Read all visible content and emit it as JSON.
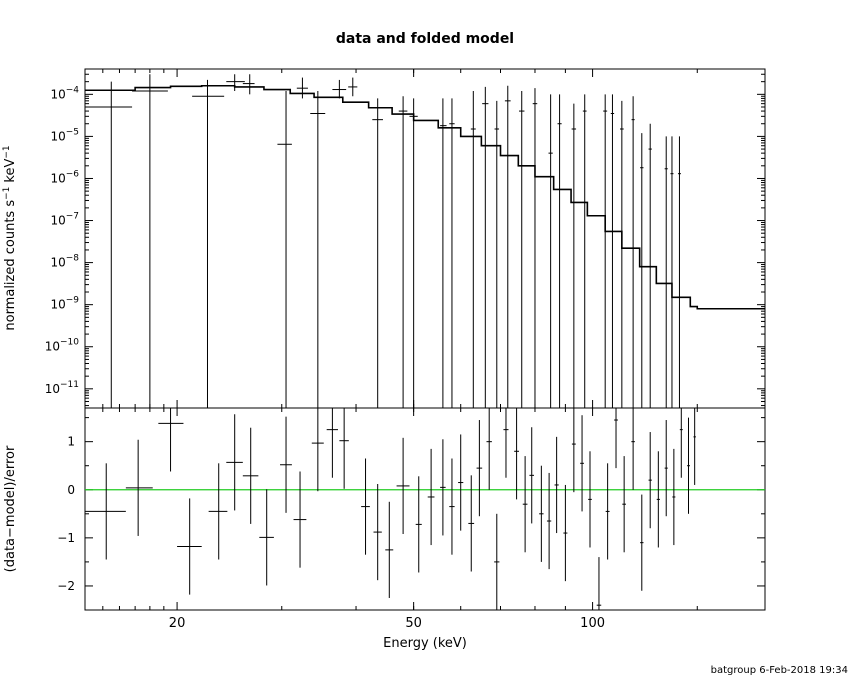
{
  "chart_data": [
    {
      "type": "step",
      "title": "data and folded model",
      "ylabel": "normalized counts s",
      "ylabel_unit": "keV",
      "ylabel_exp": "−1",
      "xscale": "log",
      "yscale": "log",
      "xlim": [
        14,
        195
      ],
      "ylim": [
        3.5e-12,
        0.0004
      ],
      "yticks": [
        {
          "value": 0.0001,
          "mant": "10",
          "exp": "−4"
        },
        {
          "value": 1e-05,
          "mant": "10",
          "exp": "−5"
        },
        {
          "value": 1e-06,
          "mant": "10",
          "exp": "−6"
        },
        {
          "value": 1e-07,
          "mant": "10",
          "exp": "−7"
        },
        {
          "value": 1e-08,
          "mant": "10",
          "exp": "−8"
        },
        {
          "value": 1e-09,
          "mant": "10",
          "exp": "−9"
        },
        {
          "value": 1e-10,
          "mant": "10",
          "exp": "−10"
        },
        {
          "value": 1e-11,
          "mant": "10",
          "exp": "−11"
        }
      ],
      "model": [
        [
          14,
          0.000125
        ],
        [
          17,
          0.000145
        ],
        [
          19.5,
          0.000155
        ],
        [
          22,
          0.00016
        ],
        [
          25,
          0.00015
        ],
        [
          28,
          0.00013
        ],
        [
          31,
          0.000105
        ],
        [
          34,
          8.5e-05
        ],
        [
          38,
          6.5e-05
        ],
        [
          42,
          4.8e-05
        ],
        [
          46,
          3.4e-05
        ],
        [
          50,
          2.4e-05
        ],
        [
          55,
          1.6e-05
        ],
        [
          60,
          1e-05
        ],
        [
          65,
          6e-06
        ],
        [
          70,
          3.5e-06
        ],
        [
          75,
          2e-06
        ],
        [
          80,
          1.1e-06
        ],
        [
          86,
          5.5e-07
        ],
        [
          92,
          2.7e-07
        ],
        [
          98,
          1.3e-07
        ],
        [
          105,
          5.5e-08
        ],
        [
          112,
          2.2e-08
        ],
        [
          120,
          8e-09
        ],
        [
          128,
          3.2e-09
        ],
        [
          136,
          1.5e-09
        ],
        [
          146,
          9e-10
        ],
        [
          150,
          8e-10
        ]
      ],
      "data_points": [
        {
          "x": 15.5,
          "xl": 14,
          "xh": 16.8,
          "y": 5e-05,
          "ylo": 3e-12,
          "yhi": 0.0002
        },
        {
          "x": 18,
          "xl": 16.8,
          "xh": 19.3,
          "y": 0.00012,
          "ylo": 3e-12,
          "yhi": 0.0003
        },
        {
          "x": 22.5,
          "xl": 21.2,
          "xh": 24.0,
          "y": 9e-05,
          "ylo": 3e-12,
          "yhi": 0.00022
        },
        {
          "x": 25.0,
          "xl": 24.2,
          "xh": 26.0,
          "y": 0.0002,
          "ylo": 0.00012,
          "yhi": 0.0003
        },
        {
          "x": 26.5,
          "xl": 25.8,
          "xh": 27.0,
          "y": 0.00018,
          "ylo": 0.0001,
          "yhi": 0.0003
        },
        {
          "x": 30.5,
          "xl": 29.5,
          "xh": 31.2,
          "y": 6.5e-06,
          "ylo": 3e-12,
          "yhi": 0.00012
        },
        {
          "x": 32.5,
          "xl": 31.8,
          "xh": 33.2,
          "y": 0.00014,
          "ylo": 8e-05,
          "yhi": 0.00025
        },
        {
          "x": 34.5,
          "xl": 33.5,
          "xh": 35.5,
          "y": 3.5e-05,
          "ylo": 3e-12,
          "yhi": 0.00012
        },
        {
          "x": 37.5,
          "xl": 36.5,
          "xh": 38.5,
          "y": 0.00013,
          "ylo": 8e-05,
          "yhi": 0.00022
        },
        {
          "x": 39.5,
          "xl": 38.8,
          "xh": 40.2,
          "y": 0.00015,
          "ylo": 9e-05,
          "yhi": 0.00025
        },
        {
          "x": 43.5,
          "xl": 42.6,
          "xh": 44.4,
          "y": 2.5e-05,
          "ylo": 3e-12,
          "yhi": 8e-05
        },
        {
          "x": 48,
          "xl": 47.2,
          "xh": 48.8,
          "y": 4e-05,
          "ylo": 3e-12,
          "yhi": 9e-05
        },
        {
          "x": 50,
          "xl": 49.2,
          "xh": 50.8,
          "y": 3e-05,
          "ylo": 3e-12,
          "yhi": 8e-05
        },
        {
          "x": 56,
          "xl": 55.4,
          "xh": 56.8,
          "y": 1.8e-05,
          "ylo": 3e-12,
          "yhi": 8e-05
        },
        {
          "x": 58,
          "xl": 57.4,
          "xh": 58.6,
          "y": 2e-05,
          "ylo": 3e-12,
          "yhi": 8e-05
        },
        {
          "x": 63,
          "xl": 62.4,
          "xh": 63.6,
          "y": 1.5e-05,
          "ylo": 3e-12,
          "yhi": 0.00012
        },
        {
          "x": 66,
          "xl": 65.2,
          "xh": 66.8,
          "y": 6e-05,
          "ylo": 3e-12,
          "yhi": 0.00015
        },
        {
          "x": 69,
          "xl": 68.4,
          "xh": 69.6,
          "y": 1.5e-05,
          "ylo": 3e-12,
          "yhi": 7e-05
        },
        {
          "x": 72,
          "xl": 71.2,
          "xh": 72.8,
          "y": 7e-05,
          "ylo": 3e-12,
          "yhi": 0.00016
        },
        {
          "x": 76,
          "xl": 75.2,
          "xh": 76.8,
          "y": 4e-05,
          "ylo": 3e-12,
          "yhi": 0.00012
        },
        {
          "x": 80,
          "xl": 79.3,
          "xh": 80.7,
          "y": 6e-05,
          "ylo": 3e-12,
          "yhi": 0.00014
        },
        {
          "x": 85,
          "xl": 84.3,
          "xh": 85.7,
          "y": 4e-06,
          "ylo": 3e-12,
          "yhi": 0.0001
        },
        {
          "x": 88,
          "xl": 87.3,
          "xh": 88.7,
          "y": 2e-05,
          "ylo": 3e-12,
          "yhi": 0.0001
        },
        {
          "x": 93,
          "xl": 92.2,
          "xh": 93.8,
          "y": 1.5e-05,
          "ylo": 3e-12,
          "yhi": 6e-05
        },
        {
          "x": 97,
          "xl": 96.3,
          "xh": 97.7,
          "y": 4e-05,
          "ylo": 3e-12,
          "yhi": 0.0001
        },
        {
          "x": 105,
          "xl": 104.2,
          "xh": 105.8,
          "y": 4e-05,
          "ylo": 3e-12,
          "yhi": 0.0001
        },
        {
          "x": 108,
          "xl": 107.3,
          "xh": 108.7,
          "y": 3.5e-05,
          "ylo": 3e-12,
          "yhi": 0.0001
        },
        {
          "x": 112,
          "xl": 111.2,
          "xh": 112.8,
          "y": 1.5e-05,
          "ylo": 3e-12,
          "yhi": 7e-05
        },
        {
          "x": 117,
          "xl": 116.3,
          "xh": 117.7,
          "y": 2.5e-05,
          "ylo": 3e-12,
          "yhi": 9e-05
        },
        {
          "x": 121,
          "xl": 120.2,
          "xh": 121.8,
          "y": 1.8e-06,
          "ylo": 3e-12,
          "yhi": 1.2e-05
        },
        {
          "x": 125,
          "xl": 124.2,
          "xh": 125.8,
          "y": 5e-06,
          "ylo": 3e-12,
          "yhi": 2e-05
        },
        {
          "x": 133,
          "xl": 132.2,
          "xh": 133.8,
          "y": 1.7e-06,
          "ylo": 3e-12,
          "yhi": 1e-05
        },
        {
          "x": 136,
          "xl": 135.2,
          "xh": 136.8,
          "y": 1.3e-06,
          "ylo": 3e-12,
          "yhi": 1e-05
        },
        {
          "x": 140,
          "xl": 139.2,
          "xh": 140.8,
          "y": 1.3e-06,
          "ylo": 3e-12,
          "yhi": 1e-05
        }
      ]
    },
    {
      "type": "scatter",
      "xlabel": "Energy (keV)",
      "ylabel": "(data−model)/error",
      "xscale": "log",
      "xlim": [
        14,
        195
      ],
      "ylim": [
        -2.5,
        1.7
      ],
      "yticks": [
        {
          "value": 1,
          "label": "1"
        },
        {
          "value": 0,
          "label": "0"
        },
        {
          "value": -1,
          "label": "−1"
        },
        {
          "value": -2,
          "label": "−2"
        }
      ],
      "xticks": [
        {
          "value": 20,
          "label": "20"
        },
        {
          "value": 50,
          "label": "50"
        },
        {
          "value": 100,
          "label": "100"
        }
      ],
      "reference_line": {
        "y": 0,
        "color": "#22cc22"
      },
      "data_points": [
        {
          "x": 15.2,
          "xl": 14,
          "xh": 16.4,
          "y": -0.45,
          "ylo": -1.45,
          "yhi": 0.55
        },
        {
          "x": 17.2,
          "xl": 16.4,
          "xh": 18.2,
          "y": 0.04,
          "ylo": -0.96,
          "yhi": 1.04
        },
        {
          "x": 19.5,
          "xl": 18.6,
          "xh": 20.5,
          "y": 1.38,
          "ylo": 0.38,
          "yhi": 2.38
        },
        {
          "x": 21.0,
          "xl": 20.0,
          "xh": 22.0,
          "y": -1.18,
          "ylo": -2.18,
          "yhi": -0.18
        },
        {
          "x": 23.5,
          "xl": 22.6,
          "xh": 24.3,
          "y": -0.45,
          "ylo": -1.45,
          "yhi": 0.55
        },
        {
          "x": 25.0,
          "xl": 24.2,
          "xh": 25.8,
          "y": 0.57,
          "ylo": -0.43,
          "yhi": 1.57
        },
        {
          "x": 26.6,
          "xl": 25.8,
          "xh": 27.4,
          "y": 0.29,
          "ylo": -0.71,
          "yhi": 1.29
        },
        {
          "x": 28.3,
          "xl": 27.5,
          "xh": 29.1,
          "y": -0.99,
          "ylo": -1.99,
          "yhi": 0.01
        },
        {
          "x": 30.5,
          "xl": 29.8,
          "xh": 31.2,
          "y": 0.52,
          "ylo": -0.48,
          "yhi": 1.52
        },
        {
          "x": 32.2,
          "xl": 31.4,
          "xh": 33.0,
          "y": -0.62,
          "ylo": -1.62,
          "yhi": 0.38
        },
        {
          "x": 34.5,
          "xl": 33.7,
          "xh": 35.3,
          "y": 0.97,
          "ylo": -0.03,
          "yhi": 1.97
        },
        {
          "x": 36.5,
          "xl": 35.7,
          "xh": 37.3,
          "y": 1.25,
          "ylo": 0.25,
          "yhi": 2.25
        },
        {
          "x": 38.2,
          "xl": 37.5,
          "xh": 38.9,
          "y": 1.02,
          "ylo": 0.02,
          "yhi": 2.02
        },
        {
          "x": 41.5,
          "xl": 40.8,
          "xh": 42.2,
          "y": -0.35,
          "ylo": -1.35,
          "yhi": 0.65
        },
        {
          "x": 43.5,
          "xl": 42.8,
          "xh": 44.2,
          "y": -0.88,
          "ylo": -1.88,
          "yhi": 0.12
        },
        {
          "x": 45.5,
          "xl": 44.8,
          "xh": 46.2,
          "y": -1.25,
          "ylo": -2.25,
          "yhi": -0.25
        },
        {
          "x": 48.0,
          "xl": 46.8,
          "xh": 49.2,
          "y": 0.08,
          "ylo": -0.92,
          "yhi": 1.08
        },
        {
          "x": 51.0,
          "xl": 50.4,
          "xh": 51.6,
          "y": -0.72,
          "ylo": -1.72,
          "yhi": 0.28
        },
        {
          "x": 53.5,
          "xl": 52.8,
          "xh": 54.2,
          "y": -0.15,
          "ylo": -1.15,
          "yhi": 0.85
        },
        {
          "x": 56.0,
          "xl": 55.4,
          "xh": 56.6,
          "y": 0.05,
          "ylo": -0.95,
          "yhi": 1.05
        },
        {
          "x": 58.0,
          "xl": 57.4,
          "xh": 58.6,
          "y": -0.35,
          "ylo": -1.35,
          "yhi": 0.65
        },
        {
          "x": 60.0,
          "xl": 59.4,
          "xh": 60.6,
          "y": 0.15,
          "ylo": -0.85,
          "yhi": 1.15
        },
        {
          "x": 62.5,
          "xl": 61.8,
          "xh": 63.2,
          "y": -0.7,
          "ylo": -1.7,
          "yhi": 0.3
        },
        {
          "x": 64.5,
          "xl": 63.8,
          "xh": 65.2,
          "y": 0.45,
          "ylo": -0.55,
          "yhi": 1.45
        },
        {
          "x": 67.0,
          "xl": 66.3,
          "xh": 67.7,
          "y": 1.0,
          "ylo": 0.0,
          "yhi": 2.0
        },
        {
          "x": 69.0,
          "xl": 68.3,
          "xh": 69.7,
          "y": -1.5,
          "ylo": -2.5,
          "yhi": -0.5
        },
        {
          "x": 71.5,
          "xl": 70.8,
          "xh": 72.2,
          "y": 1.25,
          "ylo": 0.25,
          "yhi": 2.25
        },
        {
          "x": 74.5,
          "xl": 73.8,
          "xh": 75.2,
          "y": 0.8,
          "ylo": -0.2,
          "yhi": 1.8
        },
        {
          "x": 77.0,
          "xl": 76.3,
          "xh": 77.7,
          "y": -0.3,
          "ylo": -1.3,
          "yhi": 0.7
        },
        {
          "x": 79.0,
          "xl": 78.3,
          "xh": 79.7,
          "y": 0.3,
          "ylo": -0.7,
          "yhi": 1.3
        },
        {
          "x": 82.0,
          "xl": 81.3,
          "xh": 82.7,
          "y": -0.5,
          "ylo": -1.5,
          "yhi": 0.5
        },
        {
          "x": 84.5,
          "xl": 83.8,
          "xh": 85.2,
          "y": -0.65,
          "ylo": -1.65,
          "yhi": 0.35
        },
        {
          "x": 87.0,
          "xl": 86.3,
          "xh": 87.7,
          "y": 0.1,
          "ylo": -0.9,
          "yhi": 1.1
        },
        {
          "x": 90.0,
          "xl": 89.3,
          "xh": 90.7,
          "y": -0.9,
          "ylo": -1.9,
          "yhi": 0.1
        },
        {
          "x": 93.0,
          "xl": 92.3,
          "xh": 93.7,
          "y": 0.95,
          "ylo": -0.05,
          "yhi": 1.95
        },
        {
          "x": 96.0,
          "xl": 95.3,
          "xh": 96.7,
          "y": 0.55,
          "ylo": -0.45,
          "yhi": 1.55
        },
        {
          "x": 99.0,
          "xl": 98.3,
          "xh": 99.7,
          "y": -0.2,
          "ylo": -1.2,
          "yhi": 0.8
        },
        {
          "x": 102.5,
          "xl": 101.6,
          "xh": 103.4,
          "y": -2.4,
          "ylo": -3.4,
          "yhi": -1.4
        },
        {
          "x": 106.0,
          "xl": 105.2,
          "xh": 106.8,
          "y": -0.45,
          "ylo": -1.45,
          "yhi": 0.55
        },
        {
          "x": 109.5,
          "xl": 108.7,
          "xh": 110.3,
          "y": 1.45,
          "ylo": 0.45,
          "yhi": 2.45
        },
        {
          "x": 113.0,
          "xl": 112.2,
          "xh": 113.8,
          "y": -0.3,
          "ylo": -1.3,
          "yhi": 0.7
        },
        {
          "x": 117.0,
          "xl": 116.2,
          "xh": 117.8,
          "y": 1.0,
          "ylo": 0.0,
          "yhi": 2.0
        },
        {
          "x": 121.0,
          "xl": 120.2,
          "xh": 121.8,
          "y": -1.1,
          "ylo": -2.1,
          "yhi": -0.1
        },
        {
          "x": 125.0,
          "xl": 124.2,
          "xh": 125.8,
          "y": 0.2,
          "ylo": -0.8,
          "yhi": 1.2
        },
        {
          "x": 129.0,
          "xl": 128.2,
          "xh": 129.8,
          "y": -0.2,
          "ylo": -1.2,
          "yhi": 0.8
        },
        {
          "x": 133.0,
          "xl": 132.2,
          "xh": 133.8,
          "y": 0.45,
          "ylo": -0.55,
          "yhi": 1.45
        },
        {
          "x": 137.0,
          "xl": 136.2,
          "xh": 137.8,
          "y": -0.15,
          "ylo": -1.15,
          "yhi": 0.85
        },
        {
          "x": 141.0,
          "xl": 140.2,
          "xh": 141.8,
          "y": 1.25,
          "ylo": 0.25,
          "yhi": 2.25
        },
        {
          "x": 145.0,
          "xl": 144.2,
          "xh": 145.8,
          "y": 0.5,
          "ylo": -0.5,
          "yhi": 1.5
        },
        {
          "x": 148.5,
          "xl": 147.8,
          "xh": 149.2,
          "y": 1.1,
          "ylo": 0.1,
          "yhi": 2.1
        }
      ]
    }
  ],
  "footer": {
    "text": "batgroup  6-Feb-2018 19:34"
  }
}
